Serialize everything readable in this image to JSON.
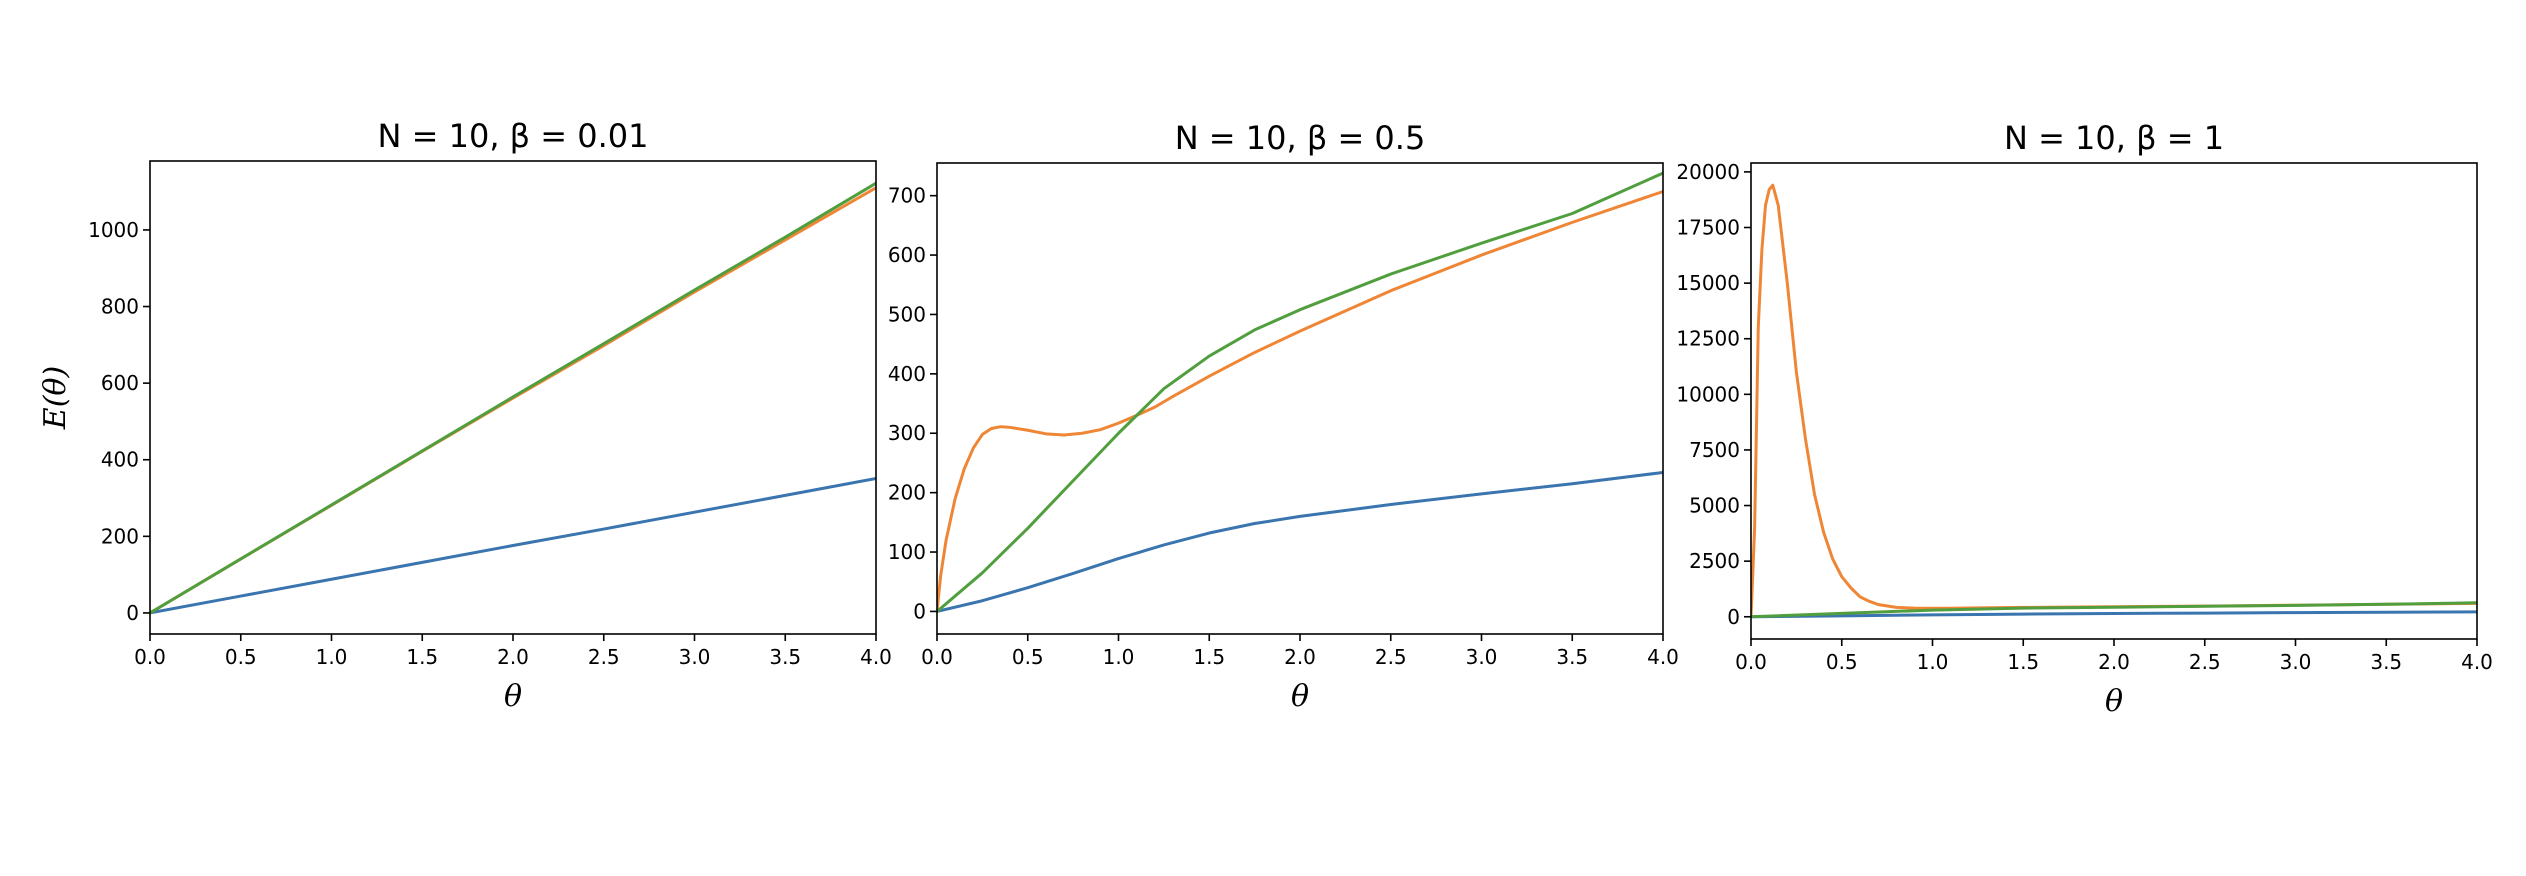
{
  "chart_data": [
    {
      "type": "line",
      "title": "N = 10, β = 0.01",
      "xlabel": "θ",
      "ylabel": "E(θ)",
      "xlim": [
        0,
        4
      ],
      "ylim": [
        -55,
        1180
      ],
      "xticks": [
        0,
        0.5,
        1,
        1.5,
        2,
        2.5,
        3,
        3.5,
        4
      ],
      "xtick_labels": [
        "0.0",
        "0.5",
        "1.0",
        "1.5",
        "2.0",
        "2.5",
        "3.0",
        "3.5",
        "4.0"
      ],
      "yticks": [
        0,
        200,
        400,
        600,
        800,
        1000
      ],
      "ytick_labels": [
        "0",
        "200",
        "400",
        "600",
        "800",
        "1000"
      ],
      "grid": false,
      "series": [
        {
          "color": "#3a75af",
          "x": [
            0,
            0.5,
            1,
            1.5,
            2,
            2.5,
            3,
            3.5,
            4
          ],
          "y": [
            0,
            44,
            88,
            132,
            176,
            219,
            263,
            307,
            351
          ]
        },
        {
          "color": "#ef8636",
          "x": [
            0,
            0.5,
            1,
            1.5,
            2,
            2.5,
            3,
            3.5,
            4
          ],
          "y": [
            0,
            141,
            281,
            422,
            561,
            698,
            838,
            974,
            1110
          ]
        },
        {
          "color": "#519e3e",
          "x": [
            0,
            0.5,
            1,
            1.5,
            2,
            2.5,
            3,
            3.5,
            4
          ],
          "y": [
            0,
            141,
            282,
            423,
            564,
            703,
            843,
            981,
            1122
          ]
        }
      ]
    },
    {
      "type": "line",
      "title": "N = 10, β = 0.5",
      "xlabel": "θ",
      "ylabel": "",
      "xlim": [
        0,
        4
      ],
      "ylim": [
        -38,
        755
      ],
      "xticks": [
        0,
        0.5,
        1,
        1.5,
        2,
        2.5,
        3,
        3.5,
        4
      ],
      "xtick_labels": [
        "0.0",
        "0.5",
        "1.0",
        "1.5",
        "2.0",
        "2.5",
        "3.0",
        "3.5",
        "4.0"
      ],
      "yticks": [
        0,
        100,
        200,
        300,
        400,
        500,
        600,
        700
      ],
      "ytick_labels": [
        "0",
        "100",
        "200",
        "300",
        "400",
        "500",
        "600",
        "700"
      ],
      "grid": false,
      "series": [
        {
          "color": "#3a75af",
          "x": [
            0,
            0.25,
            0.5,
            0.75,
            1,
            1.25,
            1.5,
            1.75,
            2,
            2.5,
            3,
            3.5,
            4
          ],
          "y": [
            0,
            18,
            40,
            64,
            89,
            112,
            132,
            148,
            160,
            180,
            198,
            215,
            234
          ]
        },
        {
          "color": "#ef8636",
          "x": [
            0,
            0.02,
            0.05,
            0.1,
            0.15,
            0.2,
            0.25,
            0.3,
            0.35,
            0.4,
            0.5,
            0.6,
            0.7,
            0.8,
            0.9,
            1,
            1.1,
            1.2,
            1.3,
            1.5,
            1.75,
            2,
            2.5,
            3,
            3.5,
            4
          ],
          "y": [
            0,
            60,
            120,
            190,
            240,
            275,
            298,
            308,
            311,
            310,
            305,
            299,
            297,
            300,
            306,
            317,
            330,
            344,
            362,
            396,
            436,
            472,
            540,
            600,
            655,
            707
          ]
        },
        {
          "color": "#519e3e",
          "x": [
            0,
            0.25,
            0.5,
            0.75,
            1,
            1.25,
            1.5,
            1.75,
            2,
            2.5,
            3,
            3.5,
            4
          ],
          "y": [
            0,
            65,
            140,
            220,
            300,
            375,
            430,
            474,
            508,
            568,
            620,
            670,
            738
          ]
        }
      ]
    },
    {
      "type": "line",
      "title": "N = 10, β = 1",
      "xlabel": "θ",
      "ylabel": "",
      "xlim": [
        0,
        4
      ],
      "ylim": [
        -1000,
        20400
      ],
      "xticks": [
        0,
        0.5,
        1,
        1.5,
        2,
        2.5,
        3,
        3.5,
        4
      ],
      "xtick_labels": [
        "0.0",
        "0.5",
        "1.0",
        "1.5",
        "2.0",
        "2.5",
        "3.0",
        "3.5",
        "4.0"
      ],
      "yticks": [
        0,
        2500,
        5000,
        7500,
        10000,
        12500,
        15000,
        17500,
        20000
      ],
      "ytick_labels": [
        "0",
        "2500",
        "5000",
        "7500",
        "10000",
        "12500",
        "15000",
        "17500",
        "20000"
      ],
      "grid": false,
      "series": [
        {
          "color": "#3a75af",
          "x": [
            0,
            0.5,
            1,
            1.5,
            2,
            2.5,
            3,
            3.5,
            4
          ],
          "y": [
            0,
            40,
            85,
            120,
            145,
            165,
            185,
            200,
            220
          ]
        },
        {
          "color": "#ef8636",
          "x": [
            0,
            0.02,
            0.04,
            0.06,
            0.08,
            0.1,
            0.12,
            0.15,
            0.2,
            0.25,
            0.3,
            0.35,
            0.4,
            0.45,
            0.5,
            0.55,
            0.6,
            0.65,
            0.7,
            0.8,
            0.9,
            1,
            1.1,
            1.2,
            1.5,
            2,
            2.5,
            3,
            3.5,
            4
          ],
          "y": [
            0,
            4000,
            13000,
            16500,
            18500,
            19200,
            19400,
            18500,
            15000,
            11000,
            8000,
            5500,
            3800,
            2600,
            1800,
            1300,
            900,
            700,
            550,
            420,
            390,
            380,
            385,
            395,
            420,
            450,
            480,
            520,
            560,
            600
          ]
        },
        {
          "color": "#519e3e",
          "x": [
            0,
            0.5,
            1,
            1.5,
            2,
            2.5,
            3,
            3.5,
            4
          ],
          "y": [
            0,
            150,
            300,
            390,
            430,
            470,
            510,
            560,
            630
          ]
        }
      ]
    }
  ]
}
